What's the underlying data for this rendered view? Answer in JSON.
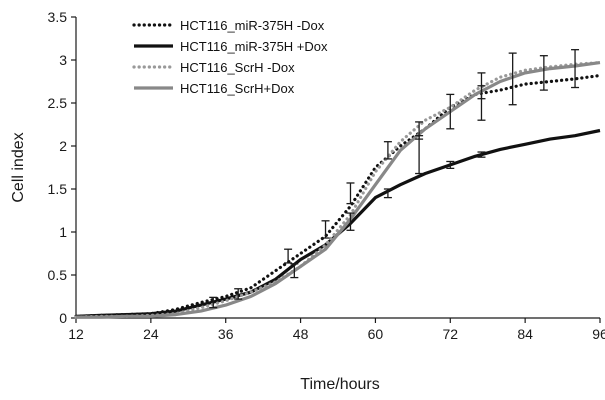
{
  "chart_data": {
    "type": "line",
    "xlabel": "Time/hours",
    "ylabel": "Cell index",
    "xlim": [
      12,
      96
    ],
    "ylim": [
      0,
      3.5
    ],
    "xticks": [
      12,
      24,
      36,
      48,
      60,
      72,
      84,
      96
    ],
    "xtick_labels": [
      "12",
      "24",
      "36",
      "48",
      "60",
      "72",
      "84",
      "96"
    ],
    "yticks": [
      0,
      0.5,
      1,
      1.5,
      2,
      2.5,
      3,
      3.5
    ],
    "ytick_labels": [
      "0",
      "0.5",
      "1",
      "1.5",
      "2",
      "2.5",
      "3",
      "3.5"
    ],
    "grid": false,
    "legend_position": "top-left",
    "series": [
      {
        "name": "HCT116_miR-375H -Dox",
        "color": "#111111",
        "style": "dotted",
        "x": [
          12,
          16,
          20,
          24,
          28,
          32,
          36,
          40,
          44,
          48,
          52,
          56,
          60,
          64,
          68,
          72,
          76,
          80,
          84,
          88,
          92,
          96
        ],
        "y": [
          0.02,
          0.03,
          0.04,
          0.05,
          0.1,
          0.18,
          0.25,
          0.35,
          0.55,
          0.75,
          0.95,
          1.3,
          1.75,
          2.0,
          2.2,
          2.45,
          2.6,
          2.65,
          2.72,
          2.75,
          2.78,
          2.82
        ]
      },
      {
        "name": "HCT116_miR-375H +Dox",
        "color": "#111111",
        "style": "solid",
        "x": [
          12,
          16,
          20,
          24,
          28,
          32,
          36,
          40,
          44,
          48,
          52,
          56,
          60,
          64,
          68,
          72,
          76,
          80,
          84,
          88,
          92,
          96
        ],
        "y": [
          0.02,
          0.03,
          0.04,
          0.05,
          0.08,
          0.15,
          0.22,
          0.3,
          0.45,
          0.68,
          0.85,
          1.1,
          1.4,
          1.55,
          1.68,
          1.78,
          1.88,
          1.96,
          2.02,
          2.08,
          2.12,
          2.18
        ]
      },
      {
        "name": "HCT116_ScrH -Dox",
        "color": "#999999",
        "style": "dotted",
        "x": [
          12,
          16,
          20,
          24,
          28,
          32,
          36,
          40,
          44,
          48,
          52,
          56,
          60,
          64,
          68,
          72,
          76,
          80,
          84,
          88,
          92,
          96
        ],
        "y": [
          0.01,
          0.02,
          0.02,
          0.03,
          0.05,
          0.12,
          0.2,
          0.3,
          0.42,
          0.6,
          0.85,
          1.2,
          1.7,
          2.05,
          2.3,
          2.45,
          2.65,
          2.8,
          2.88,
          2.92,
          2.95,
          2.97
        ]
      },
      {
        "name": "HCT116_ScrH+Dox",
        "color": "#888888",
        "style": "solid",
        "x": [
          12,
          16,
          20,
          24,
          28,
          32,
          36,
          40,
          44,
          48,
          52,
          56,
          60,
          64,
          68,
          72,
          76,
          80,
          84,
          88,
          92,
          96
        ],
        "y": [
          0.01,
          0.01,
          0.02,
          0.02,
          0.04,
          0.08,
          0.15,
          0.25,
          0.4,
          0.6,
          0.8,
          1.15,
          1.55,
          1.95,
          2.2,
          2.4,
          2.6,
          2.75,
          2.85,
          2.9,
          2.93,
          2.97
        ]
      }
    ],
    "error_bars": [
      {
        "x": 34,
        "y": 0.18,
        "err": 0.06
      },
      {
        "x": 38,
        "y": 0.28,
        "err": 0.06
      },
      {
        "x": 46,
        "y": 0.72,
        "err": 0.08
      },
      {
        "x": 47,
        "y": 0.55,
        "err": 0.08
      },
      {
        "x": 52,
        "y": 1.03,
        "err": 0.1
      },
      {
        "x": 56,
        "y": 1.45,
        "err": 0.12
      },
      {
        "x": 56,
        "y": 1.12,
        "err": 0.1
      },
      {
        "x": 62,
        "y": 1.95,
        "err": 0.1
      },
      {
        "x": 62,
        "y": 1.45,
        "err": 0.05
      },
      {
        "x": 67,
        "y": 2.18,
        "err": 0.1
      },
      {
        "x": 67,
        "y": 1.9,
        "err": 0.22
      },
      {
        "x": 72,
        "y": 2.4,
        "err": 0.2
      },
      {
        "x": 72,
        "y": 1.78,
        "err": 0.04
      },
      {
        "x": 77,
        "y": 2.7,
        "err": 0.15
      },
      {
        "x": 77,
        "y": 2.5,
        "err": 0.2
      },
      {
        "x": 77,
        "y": 1.9,
        "err": 0.03
      },
      {
        "x": 82,
        "y": 2.78,
        "err": 0.3
      },
      {
        "x": 87,
        "y": 2.85,
        "err": 0.2
      },
      {
        "x": 92,
        "y": 2.9,
        "err": 0.22
      }
    ]
  }
}
